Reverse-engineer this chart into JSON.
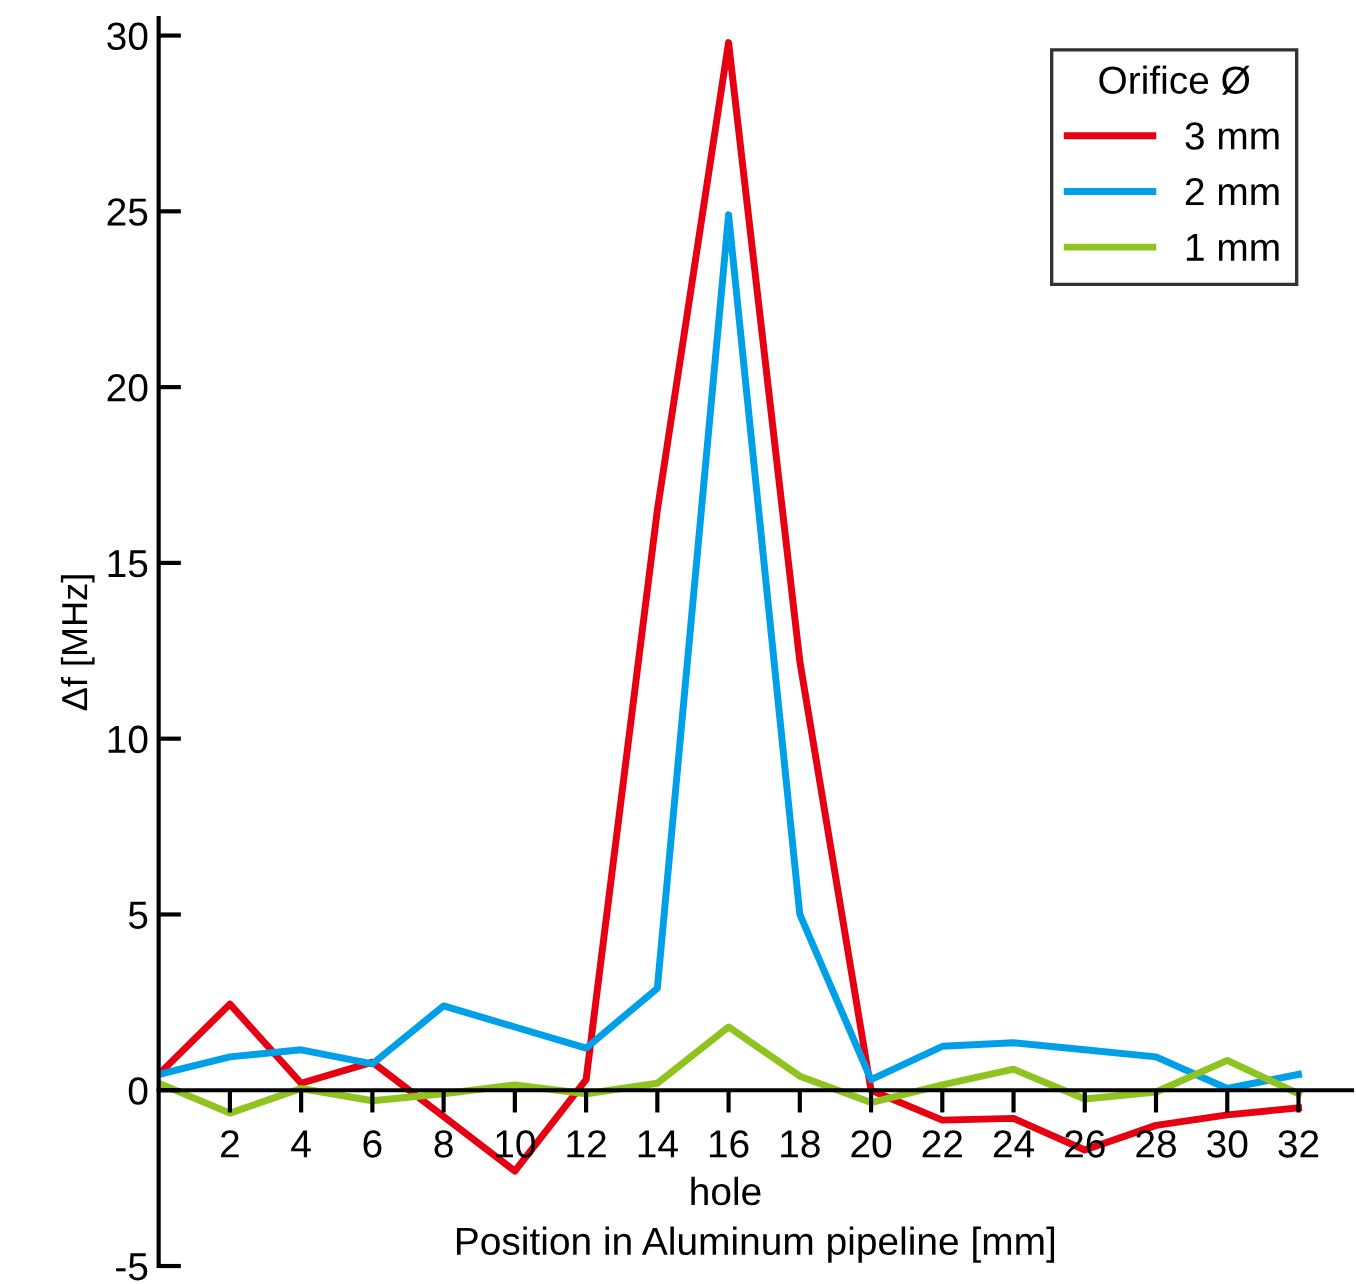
{
  "chart_data": {
    "type": "line",
    "xlabel": "Position in Aluminum pipeline [mm]",
    "ylabel": "Δf [MHz]",
    "legend_title": "Orifice Ø",
    "legend": "top right",
    "grid": false,
    "marker": "none",
    "line_style": "solid",
    "x": [
      0,
      2,
      4,
      6,
      8,
      10,
      12,
      14,
      16,
      18,
      20,
      22,
      24,
      26,
      28,
      30,
      32
    ],
    "xlim": [
      0,
      33.5
    ],
    "ylim": [
      -5,
      30.5
    ],
    "xticks": [
      2,
      4,
      6,
      8,
      10,
      12,
      14,
      16,
      18,
      20,
      22,
      24,
      26,
      28,
      30,
      32
    ],
    "yticks": [
      -5,
      0,
      5,
      10,
      15,
      20,
      25,
      30
    ],
    "annotations": [
      "hole"
    ],
    "series": [
      {
        "name": "3 mm",
        "color": "#e60012",
        "values": [
          0.45,
          2.45,
          0.2,
          0.8,
          -0.75,
          -2.3,
          0.3,
          16.5,
          29.8,
          12.2,
          0.0,
          -0.85,
          -0.8,
          -1.7,
          -1.0,
          -0.7,
          -0.5
        ]
      },
      {
        "name": "2 mm",
        "color": "#00a0e9",
        "values": [
          0.45,
          0.95,
          1.15,
          0.75,
          2.4,
          1.8,
          1.2,
          2.9,
          24.9,
          5.0,
          0.3,
          1.25,
          1.35,
          1.15,
          0.95,
          0.05,
          0.45
        ]
      },
      {
        "name": "1 mm",
        "color": "#8fc31f",
        "values": [
          0.2,
          -0.65,
          0.05,
          -0.3,
          -0.1,
          0.15,
          -0.1,
          0.2,
          1.8,
          0.4,
          -0.35,
          0.15,
          0.6,
          -0.25,
          -0.05,
          0.85,
          -0.1
        ]
      }
    ]
  }
}
